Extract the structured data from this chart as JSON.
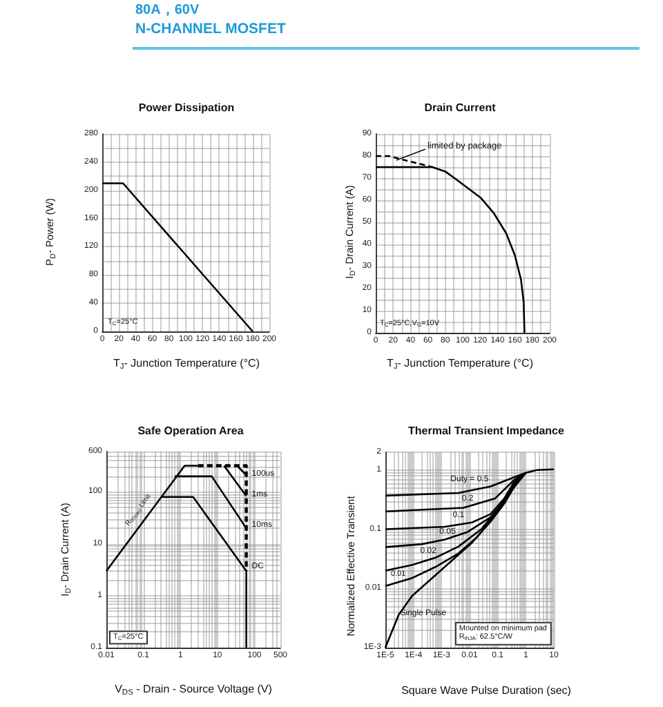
{
  "chart_data": [
    {
      "type": "other",
      "title": "80A，60V",
      "subtitle": "N-CHANNEL MOSFET"
    },
    {
      "type": "line",
      "title": "Power Dissipation",
      "xlabel": "T$_{J}$- Junction Temperature (°C)",
      "ylabel": "P$_{D}$- Power (W)",
      "annotations": [
        "T$_{C}$=25°C"
      ],
      "x": [
        0,
        25,
        180
      ],
      "values": [
        210,
        210,
        0
      ],
      "color": "#000000",
      "xlim": [
        0,
        200
      ],
      "xticks": [
        0,
        {
          "value": 10,
          "label": null
        },
        20,
        {
          "value": 30,
          "label": null
        },
        40,
        {
          "value": 50,
          "label": null
        },
        60,
        {
          "value": 70,
          "label": null
        },
        80,
        {
          "value": 90,
          "label": null
        },
        100,
        {
          "value": 110,
          "label": null
        },
        120,
        {
          "value": 130,
          "label": null
        },
        140,
        {
          "value": 150,
          "label": null
        },
        160,
        {
          "value": 170,
          "label": null
        },
        180,
        {
          "value": 190,
          "label": null
        },
        200
      ],
      "ylim": [
        0,
        280
      ],
      "yticks": [
        0,
        {
          "value": 20,
          "label": null
        },
        40,
        {
          "value": 60,
          "label": null
        },
        80,
        {
          "value": 100,
          "label": null
        },
        120,
        {
          "value": 140,
          "label": null
        },
        160,
        {
          "value": 180,
          "label": null
        },
        200,
        {
          "value": 220,
          "label": null
        },
        240,
        {
          "value": 260,
          "label": null
        },
        280
      ],
      "grid": true,
      "marker": "none"
    },
    {
      "type": "line",
      "title": "Drain Current",
      "xlabel": "T$_{J}$- Junction Temperature (°C)",
      "ylabel": "I$_{D}$- Drain Current (A)",
      "annotations": [
        "T$_{C}$=25°C,V$_{G}$=10V"
      ],
      "series": [
        {
          "color": "#000000",
          "x": [
            0,
            65,
            80,
            94,
            121,
            136,
            150,
            160,
            167,
            170,
            171
          ],
          "values": [
            75,
            75,
            73,
            69,
            61,
            54,
            45,
            35,
            24,
            14,
            0
          ]
        },
        {
          "name": "limited by package",
          "color": "#000000",
          "line_style": "dashed",
          "x": [
            0,
            15,
            65
          ],
          "values": [
            80,
            80,
            75
          ]
        }
      ],
      "xlim": [
        0,
        200
      ],
      "xticks": [
        0,
        {
          "value": 10,
          "label": null
        },
        20,
        {
          "value": 30,
          "label": null
        },
        40,
        {
          "value": 50,
          "label": null
        },
        60,
        {
          "value": 70,
          "label": null
        },
        80,
        {
          "value": 90,
          "label": null
        },
        100,
        {
          "value": 110,
          "label": null
        },
        120,
        {
          "value": 130,
          "label": null
        },
        140,
        {
          "value": 150,
          "label": null
        },
        160,
        {
          "value": 170,
          "label": null
        },
        180,
        {
          "value": 190,
          "label": null
        },
        200
      ],
      "ylim": [
        0,
        90
      ],
      "yticks": [
        0,
        {
          "value": 5,
          "label": null
        },
        10,
        {
          "value": 15,
          "label": null
        },
        20,
        {
          "value": 25,
          "label": null
        },
        30,
        {
          "value": 35,
          "label": null
        },
        40,
        {
          "value": 45,
          "label": null
        },
        50,
        {
          "value": 55,
          "label": null
        },
        60,
        {
          "value": 65,
          "label": null
        },
        70,
        {
          "value": 75,
          "label": null
        },
        80,
        {
          "value": 85,
          "label": null
        },
        90
      ],
      "grid": true,
      "marker": "none"
    },
    {
      "type": "line",
      "title": "Safe Operation Area",
      "xlabel": "V$_{DS}$ - Drain - Source Voltage (V)",
      "ylabel": "I$_{D}$- Drain Current (A)",
      "annotations": [
        "T$_{C}$=25°C"
      ],
      "log": "xy",
      "series": [
        {
          "name": "R$_{DS(on)}$ Limit",
          "color": "#000000",
          "x": [
            0.01,
            1.3,
            3
          ],
          "values": [
            3,
            320,
            320
          ]
        },
        {
          "color": "#000000",
          "line_style": "dashed",
          "x": [
            3,
            60,
            60
          ],
          "values": [
            320,
            320,
            3
          ]
        },
        {
          "name": "100us",
          "color": "#000000",
          "x": [
            34,
            60
          ],
          "values": [
            320,
            210
          ]
        },
        {
          "name": "1ms",
          "color": "#000000",
          "x": [
            15,
            60
          ],
          "values": [
            320,
            83
          ]
        },
        {
          "name": "10ms",
          "color": "#000000",
          "x": [
            0.7,
            7,
            60
          ],
          "values": [
            200,
            200,
            20
          ]
        },
        {
          "name": "DC",
          "color": "#000000",
          "x": [
            0.3,
            2.2,
            60,
            60
          ],
          "values": [
            80,
            80,
            3,
            0.1
          ]
        }
      ],
      "xlim": [
        0.01,
        500
      ],
      "xticks": [
        0.01,
        {
          "value": 0.02,
          "label": null
        },
        {
          "value": 0.03,
          "label": null
        },
        {
          "value": 0.04,
          "label": null
        },
        {
          "value": 0.05,
          "label": null
        },
        {
          "value": 0.06,
          "label": null
        },
        {
          "value": 0.07,
          "label": null
        },
        {
          "value": 0.08,
          "label": null
        },
        {
          "value": 0.09,
          "label": null
        },
        0.1,
        {
          "value": 0.2,
          "label": null
        },
        {
          "value": 0.3,
          "label": null
        },
        {
          "value": 0.4,
          "label": null
        },
        {
          "value": 0.5,
          "label": null
        },
        {
          "value": 0.6,
          "label": null
        },
        {
          "value": 0.7,
          "label": null
        },
        {
          "value": 0.8,
          "label": null
        },
        {
          "value": 0.9,
          "label": null
        },
        1,
        {
          "value": 2,
          "label": null
        },
        {
          "value": 3,
          "label": null
        },
        {
          "value": 4,
          "label": null
        },
        {
          "value": 5,
          "label": null
        },
        {
          "value": 6,
          "label": null
        },
        {
          "value": 7,
          "label": null
        },
        {
          "value": 8,
          "label": null
        },
        {
          "value": 9,
          "label": null
        },
        10,
        {
          "value": 20,
          "label": null
        },
        {
          "value": 30,
          "label": null
        },
        {
          "value": 40,
          "label": null
        },
        {
          "value": 50,
          "label": null
        },
        {
          "value": 60,
          "label": null
        },
        {
          "value": 70,
          "label": null
        },
        {
          "value": 80,
          "label": null
        },
        {
          "value": 90,
          "label": null
        },
        100,
        {
          "value": 200,
          "label": null
        },
        {
          "value": 300,
          "label": null
        },
        {
          "value": 400,
          "label": null
        },
        500
      ],
      "ylim": [
        0.1,
        600
      ],
      "yticks": [
        0.1,
        {
          "value": 0.2,
          "label": null
        },
        {
          "value": 0.3,
          "label": null
        },
        {
          "value": 0.4,
          "label": null
        },
        {
          "value": 0.5,
          "label": null
        },
        {
          "value": 0.6,
          "label": null
        },
        {
          "value": 0.7,
          "label": null
        },
        {
          "value": 0.8,
          "label": null
        },
        {
          "value": 0.9,
          "label": null
        },
        1,
        {
          "value": 2,
          "label": null
        },
        {
          "value": 3,
          "label": null
        },
        {
          "value": 4,
          "label": null
        },
        {
          "value": 5,
          "label": null
        },
        {
          "value": 6,
          "label": null
        },
        {
          "value": 7,
          "label": null
        },
        {
          "value": 8,
          "label": null
        },
        {
          "value": 9,
          "label": null
        },
        10,
        {
          "value": 20,
          "label": null
        },
        {
          "value": 30,
          "label": null
        },
        {
          "value": 40,
          "label": null
        },
        {
          "value": 50,
          "label": null
        },
        {
          "value": 60,
          "label": null
        },
        {
          "value": 70,
          "label": null
        },
        {
          "value": 80,
          "label": null
        },
        {
          "value": 90,
          "label": null
        },
        100,
        {
          "value": 200,
          "label": null
        },
        {
          "value": 300,
          "label": null
        },
        {
          "value": 400,
          "label": null
        },
        {
          "value": 500,
          "label": null
        },
        600
      ],
      "grid": true,
      "marker": "none"
    },
    {
      "type": "line",
      "title": "Thermal Transient Impedance",
      "xlabel": "Square Wave Pulse Duration (sec)",
      "ylabel": "Normalized Effective Transient",
      "annotations": [
        "Mounted on minimum pad\nR$_{thJA}$: 62.5°C/W"
      ],
      "log": "xy",
      "series": [
        {
          "name": "Duty = 0.5",
          "color": "#000000",
          "x": [
            1e-05,
            0.004,
            0.056,
            0.37,
            1,
            2.5,
            10
          ],
          "values": [
            0.37,
            0.41,
            0.53,
            0.75,
            0.9,
            1,
            1.03
          ]
        },
        {
          "name": "0.2",
          "color": "#000000",
          "x": [
            1e-05,
            0.006,
            0.08,
            0.37,
            1
          ],
          "values": [
            0.2,
            0.23,
            0.33,
            0.67,
            0.9
          ]
        },
        {
          "name": "0.1",
          "color": "#000000",
          "x": [
            1e-05,
            0.0013,
            0.012,
            0.056,
            0.17,
            0.37,
            1
          ],
          "values": [
            0.1,
            0.11,
            0.13,
            0.18,
            0.33,
            0.61,
            0.9
          ]
        },
        {
          "name": "0.05",
          "color": "#000000",
          "x": [
            1e-05,
            0.0002,
            0.0013,
            0.0085,
            0.056,
            0.17,
            0.37,
            1
          ],
          "values": [
            0.05,
            0.056,
            0.067,
            0.09,
            0.16,
            0.3,
            0.56,
            0.9
          ]
        },
        {
          "name": "0.02",
          "color": "#000000",
          "x": [
            1e-05,
            9e-05,
            0.0006,
            0.004,
            0.026,
            0.13,
            0.37,
            1
          ],
          "values": [
            0.02,
            0.025,
            0.033,
            0.051,
            0.1,
            0.25,
            0.53,
            0.9
          ]
        },
        {
          "name": "0.01",
          "color": "#000000",
          "x": [
            1e-05,
            9e-05,
            0.0006,
            0.004,
            0.018,
            0.13,
            0.37,
            1
          ],
          "values": [
            0.011,
            0.015,
            0.023,
            0.039,
            0.073,
            0.23,
            0.52,
            0.9
          ]
        },
        {
          "name": "Single Pulse",
          "color": "#000000",
          "x": [
            1e-05,
            3e-05,
            9e-05,
            0.012,
            0.056,
            0.17,
            0.37,
            1
          ],
          "values": [
            0.001,
            0.0036,
            0.0075,
            0.059,
            0.135,
            0.27,
            0.5,
            0.9
          ]
        }
      ],
      "xlim": [
        1e-05,
        10
      ],
      "xticks": [
        {
          "value": 1e-05,
          "label": "1E-5"
        },
        {
          "value": 2e-05,
          "label": null
        },
        {
          "value": 3e-05,
          "label": null
        },
        {
          "value": 4e-05,
          "label": null
        },
        {
          "value": 5e-05,
          "label": null
        },
        {
          "value": 6e-05,
          "label": null
        },
        {
          "value": 7e-05,
          "label": null
        },
        {
          "value": 8e-05,
          "label": null
        },
        {
          "value": 9e-05,
          "label": null
        },
        {
          "value": 0.0001,
          "label": "1E-4"
        },
        {
          "value": 0.0002,
          "label": null
        },
        {
          "value": 0.0003,
          "label": null
        },
        {
          "value": 0.0004,
          "label": null
        },
        {
          "value": 0.0005,
          "label": null
        },
        {
          "value": 0.0006,
          "label": null
        },
        {
          "value": 0.0007,
          "label": null
        },
        {
          "value": 0.0008,
          "label": null
        },
        {
          "value": 0.0009,
          "label": null
        },
        {
          "value": 0.001,
          "label": "1E-3"
        },
        {
          "value": 0.002,
          "label": null
        },
        {
          "value": 0.003,
          "label": null
        },
        {
          "value": 0.004,
          "label": null
        },
        {
          "value": 0.005,
          "label": null
        },
        {
          "value": 0.006,
          "label": null
        },
        {
          "value": 0.007,
          "label": null
        },
        {
          "value": 0.008,
          "label": null
        },
        {
          "value": 0.009,
          "label": null
        },
        0.01,
        {
          "value": 0.02,
          "label": null
        },
        {
          "value": 0.03,
          "label": null
        },
        {
          "value": 0.04,
          "label": null
        },
        {
          "value": 0.05,
          "label": null
        },
        {
          "value": 0.06,
          "label": null
        },
        {
          "value": 0.07,
          "label": null
        },
        {
          "value": 0.08,
          "label": null
        },
        {
          "value": 0.09,
          "label": null
        },
        0.1,
        {
          "value": 0.2,
          "label": null
        },
        {
          "value": 0.3,
          "label": null
        },
        {
          "value": 0.4,
          "label": null
        },
        {
          "value": 0.5,
          "label": null
        },
        {
          "value": 0.6,
          "label": null
        },
        {
          "value": 0.7,
          "label": null
        },
        {
          "value": 0.8,
          "label": null
        },
        {
          "value": 0.9,
          "label": null
        },
        1,
        {
          "value": 2,
          "label": null
        },
        {
          "value": 3,
          "label": null
        },
        {
          "value": 4,
          "label": null
        },
        {
          "value": 5,
          "label": null
        },
        {
          "value": 6,
          "label": null
        },
        {
          "value": 7,
          "label": null
        },
        {
          "value": 8,
          "label": null
        },
        {
          "value": 9,
          "label": null
        },
        10
      ],
      "ylim": [
        0.001,
        2
      ],
      "yticks": [
        {
          "value": 0.001,
          "label": "1E-3"
        },
        {
          "value": 0.002,
          "label": null
        },
        {
          "value": 0.003,
          "label": null
        },
        {
          "value": 0.004,
          "label": null
        },
        {
          "value": 0.005,
          "label": null
        },
        {
          "value": 0.006,
          "label": null
        },
        {
          "value": 0.007,
          "label": null
        },
        {
          "value": 0.008,
          "label": null
        },
        {
          "value": 0.009,
          "label": null
        },
        0.01,
        {
          "value": 0.02,
          "label": null
        },
        {
          "value": 0.03,
          "label": null
        },
        {
          "value": 0.04,
          "label": null
        },
        {
          "value": 0.05,
          "label": null
        },
        {
          "value": 0.06,
          "label": null
        },
        {
          "value": 0.07,
          "label": null
        },
        {
          "value": 0.08,
          "label": null
        },
        {
          "value": 0.09,
          "label": null
        },
        0.1,
        {
          "value": 0.2,
          "label": null
        },
        {
          "value": 0.3,
          "label": null
        },
        {
          "value": 0.4,
          "label": null
        },
        {
          "value": 0.5,
          "label": null
        },
        {
          "value": 0.6,
          "label": null
        },
        {
          "value": 0.7,
          "label": null
        },
        {
          "value": 0.8,
          "label": null
        },
        {
          "value": 0.9,
          "label": null
        },
        1,
        2
      ],
      "grid": true,
      "marker": "none"
    }
  ]
}
